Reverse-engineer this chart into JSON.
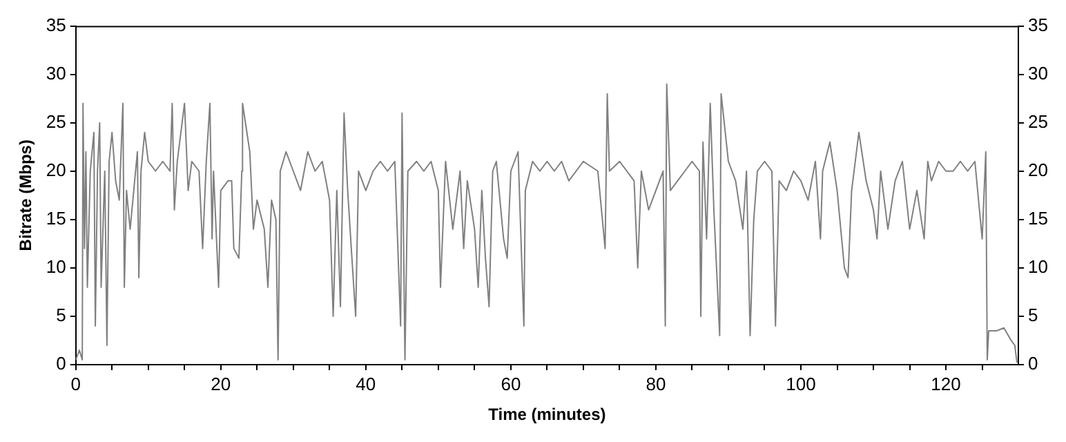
{
  "chart_data": {
    "type": "line",
    "xlabel": "Time (minutes)",
    "ylabel": "Bitrate (Mbps)",
    "xlim": [
      0,
      130
    ],
    "ylim": [
      0,
      35
    ],
    "y2lim": [
      0,
      35
    ],
    "xticks": [
      0,
      {
        "value": 5,
        "label": null
      },
      {
        "value": 10,
        "label": null
      },
      {
        "value": 15,
        "label": null
      },
      20,
      {
        "value": 25,
        "label": null
      },
      {
        "value": 30,
        "label": null
      },
      {
        "value": 35,
        "label": null
      },
      40,
      {
        "value": 45,
        "label": null
      },
      {
        "value": 50,
        "label": null
      },
      {
        "value": 55,
        "label": null
      },
      60,
      {
        "value": 65,
        "label": null
      },
      {
        "value": 70,
        "label": null
      },
      {
        "value": 75,
        "label": null
      },
      80,
      {
        "value": 85,
        "label": null
      },
      {
        "value": 90,
        "label": null
      },
      {
        "value": 95,
        "label": null
      },
      100,
      {
        "value": 105,
        "label": null
      },
      {
        "value": 110,
        "label": null
      },
      {
        "value": 115,
        "label": null
      },
      120,
      {
        "value": 125,
        "label": null
      }
    ],
    "yticks": [
      0,
      5,
      10,
      15,
      20,
      25,
      30,
      35
    ],
    "y2ticks": [
      0,
      5,
      10,
      15,
      20,
      25,
      30,
      35
    ],
    "grid": false,
    "marker": "none",
    "line_style": "solid",
    "series": [
      {
        "color": "#808080",
        "x": [
          0,
          0.5,
          0.9,
          1.0,
          1.2,
          1.4,
          1.6,
          2,
          2.5,
          2.7,
          3,
          3.3,
          3.5,
          4,
          4.3,
          4.6,
          5,
          5.5,
          6,
          6.5,
          6.7,
          7,
          7.5,
          8,
          8.5,
          8.7,
          9,
          9.5,
          10,
          11,
          12,
          13,
          13.3,
          13.6,
          14,
          15,
          15.5,
          16,
          17,
          17.5,
          18,
          18.5,
          18.8,
          19,
          19.7,
          20,
          21,
          21.5,
          21.8,
          22.5,
          22.9,
          23,
          24,
          24.5,
          25,
          26,
          26.5,
          27,
          27.6,
          27.9,
          28.2,
          29,
          30,
          31,
          32,
          33,
          34,
          35,
          35.5,
          36,
          36.5,
          37,
          37.5,
          38,
          38.6,
          39,
          40,
          41,
          42,
          43,
          44,
          44.8,
          45,
          45.4,
          45.8,
          47,
          48,
          49,
          50,
          50.3,
          51,
          52,
          53,
          53.5,
          54,
          55,
          55.5,
          56,
          56.5,
          57,
          57.5,
          58,
          59,
          59.5,
          60,
          61,
          61.8,
          62,
          63,
          64,
          65,
          66,
          67,
          68,
          70,
          72,
          73,
          73.3,
          73.6,
          75,
          77,
          77.5,
          78,
          79,
          80,
          81,
          81.3,
          81.5,
          82,
          84,
          85,
          86,
          86.2,
          86.5,
          87,
          87.5,
          88,
          88.8,
          89,
          90,
          91,
          92,
          92.5,
          93,
          93.5,
          94,
          95,
          96,
          96.5,
          97,
          98,
          99,
          100,
          101,
          102,
          102.7,
          103,
          104,
          105,
          106,
          106.5,
          107,
          108,
          109,
          110,
          110.5,
          111,
          112,
          113,
          114,
          115,
          116,
          117,
          117.5,
          118,
          119,
          120,
          121,
          122,
          123,
          124,
          125,
          125.5,
          125.7,
          125.9,
          127,
          128,
          129,
          129.5,
          129.8
        ],
        "values": [
          0.5,
          1.5,
          0.5,
          27,
          12,
          22,
          8,
          20,
          24,
          4,
          20,
          25,
          8,
          20,
          2,
          21,
          24,
          19,
          17,
          27,
          8,
          18,
          14,
          18,
          22,
          9,
          20,
          24,
          21,
          20,
          21,
          20,
          27,
          16,
          21,
          27,
          18,
          21,
          20,
          12,
          21,
          27,
          13,
          20,
          8,
          18,
          19,
          19,
          12,
          11,
          20,
          27,
          22,
          14,
          17,
          14,
          8,
          17,
          15,
          0.5,
          20,
          22,
          20,
          18,
          22,
          20,
          21,
          17,
          5,
          18,
          6,
          26,
          18,
          12,
          5,
          20,
          18,
          20,
          21,
          20,
          21,
          4,
          26,
          0.5,
          20,
          21,
          20,
          21,
          18,
          8,
          21,
          14,
          20,
          12,
          19,
          14,
          8,
          18,
          11,
          6,
          20,
          21,
          13,
          11,
          20,
          22,
          4,
          18,
          21,
          20,
          21,
          20,
          21,
          19,
          21,
          20,
          12,
          28,
          20,
          21,
          19,
          10,
          20,
          16,
          18,
          20,
          4,
          29,
          18,
          20,
          21,
          20,
          5,
          23,
          13,
          27,
          16,
          3,
          28,
          21,
          19,
          14,
          20,
          3,
          15,
          20,
          21,
          20,
          4,
          19,
          18,
          20,
          19,
          17,
          21,
          13,
          20,
          23,
          18,
          10,
          9,
          18,
          24,
          19,
          16,
          13,
          20,
          14,
          19,
          21,
          14,
          18,
          13,
          21,
          19,
          21,
          20,
          20,
          21,
          20,
          21,
          13,
          22,
          0.5,
          3.5,
          3.5,
          3.8,
          2.5,
          2,
          0.2
        ]
      }
    ]
  }
}
